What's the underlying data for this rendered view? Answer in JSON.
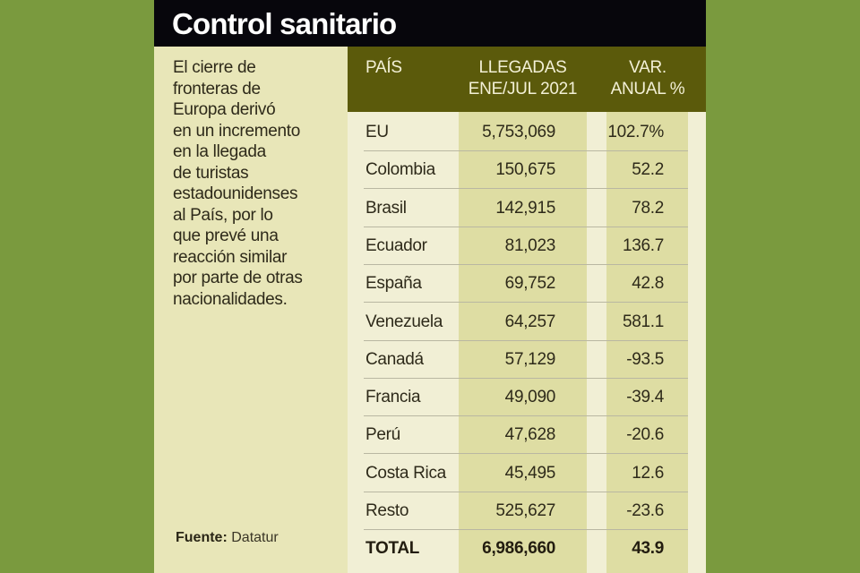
{
  "title": "Control sanitario",
  "description_lines": [
    "El cierre de",
    "fronteras de",
    "Europa derivó",
    "en un incremento",
    "en la llegada",
    "de turistas",
    "estadounidenses",
    "al País, por lo",
    "que prevé una",
    "reacción similar",
    "por parte de otras",
    "nacionalidades."
  ],
  "source": {
    "label": "Fuente:",
    "value": "Datatur"
  },
  "table": {
    "headers": {
      "country": "PAÍS",
      "arrivals_line1": "LLEGADAS",
      "arrivals_line2": "ENE/JUL 2021",
      "variation_line1": "VAR.",
      "variation_line2": "ANUAL %"
    },
    "rows": [
      {
        "country": "EU",
        "arrivals": "5,753,069",
        "variation": "102.7%"
      },
      {
        "country": "Colombia",
        "arrivals": "150,675",
        "variation": "52.2"
      },
      {
        "country": "Brasil",
        "arrivals": "142,915",
        "variation": "78.2"
      },
      {
        "country": "Ecuador",
        "arrivals": "81,023",
        "variation": "136.7"
      },
      {
        "country": "España",
        "arrivals": "69,752",
        "variation": "42.8"
      },
      {
        "country": "Venezuela",
        "arrivals": "64,257",
        "variation": "581.1"
      },
      {
        "country": "Canadá",
        "arrivals": "57,129",
        "variation": "-93.5"
      },
      {
        "country": "Francia",
        "arrivals": "49,090",
        "variation": "-39.4"
      },
      {
        "country": "Perú",
        "arrivals": "47,628",
        "variation": "-20.6"
      },
      {
        "country": "Costa Rica",
        "arrivals": "45,495",
        "variation": "12.6"
      },
      {
        "country": "Resto",
        "arrivals": "525,627",
        "variation": "-23.6"
      }
    ],
    "total": {
      "country": "TOTAL",
      "arrivals": "6,986,660",
      "variation": "43.9"
    }
  },
  "colors": {
    "background": "#7a9a3e",
    "title_bar": "#07060c",
    "header": "#5b5a0b",
    "panel": "#e8e6b8",
    "shaded_column": "#dedda3"
  }
}
